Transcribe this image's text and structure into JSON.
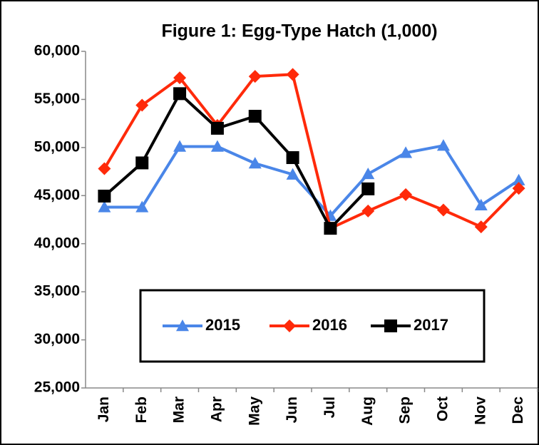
{
  "chart_data": {
    "type": "line",
    "title": "Figure 1: Egg-Type Hatch (1,000)",
    "categories": [
      "Jan",
      "Feb",
      "Mar",
      "Apr",
      "May",
      "Jun",
      "Jul",
      "Aug",
      "Sep",
      "Oct",
      "Nov",
      "Dec"
    ],
    "series": [
      {
        "name": "2015",
        "color": "#4a86e8",
        "marker": "triangle",
        "values": [
          43800,
          43800,
          50100,
          50100,
          48350,
          47200,
          42900,
          47250,
          49450,
          50200,
          44000,
          46600
        ]
      },
      {
        "name": "2016",
        "color": "#ff2a0a",
        "marker": "diamond",
        "values": [
          47800,
          54400,
          57250,
          52300,
          57400,
          57600,
          41600,
          43400,
          45100,
          43500,
          41750,
          45750
        ]
      },
      {
        "name": "2017",
        "color": "#000000",
        "marker": "square",
        "values": [
          44950,
          48400,
          55600,
          52000,
          53250,
          48950,
          41600,
          45700,
          null,
          null,
          null,
          null
        ]
      }
    ],
    "ylim": [
      25000,
      60000
    ],
    "yticks": [
      {
        "value": 25000,
        "label": "25,000"
      },
      {
        "value": 30000,
        "label": "30,000"
      },
      {
        "value": 35000,
        "label": "35,000"
      },
      {
        "value": 40000,
        "label": "40,000"
      },
      {
        "value": 45000,
        "label": "45,000"
      },
      {
        "value": 50000,
        "label": "50,000"
      },
      {
        "value": 55000,
        "label": "55,000"
      },
      {
        "value": 60000,
        "label": "60,000"
      }
    ],
    "grid": false,
    "legend": "center"
  }
}
